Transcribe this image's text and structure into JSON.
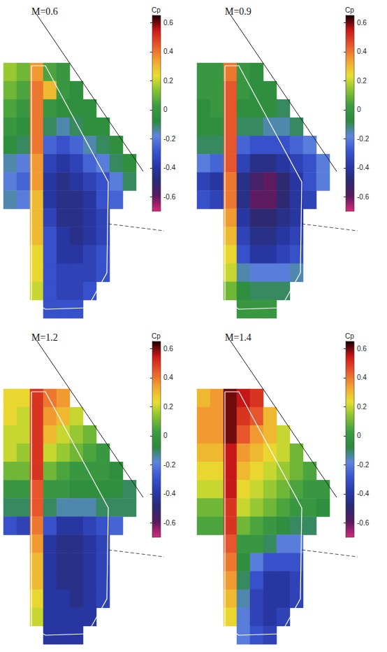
{
  "chart_data": [
    {
      "type": "heatmap",
      "title": "M=0.6",
      "colorbar_label": "Cp",
      "colorbar_range": [
        -0.7,
        0.65
      ],
      "colorbar_ticks": [
        -0.6,
        -0.4,
        -0.2,
        0,
        0.2,
        0.4,
        0.6
      ],
      "tick_labels": false,
      "values": [
        [
          0.15,
          0.1,
          0.35,
          0.05,
          0.0,
          null,
          null,
          null,
          null,
          null
        ],
        [
          0.1,
          0.05,
          0.4,
          0.3,
          0.0,
          -0.05,
          null,
          null,
          null,
          null
        ],
        [
          0.05,
          0.0,
          0.4,
          0.0,
          -0.05,
          -0.05,
          -0.05,
          null,
          null,
          null
        ],
        [
          0.0,
          -0.05,
          0.4,
          -0.1,
          -0.15,
          -0.1,
          -0.05,
          -0.05,
          null,
          null
        ],
        [
          -0.05,
          -0.1,
          0.4,
          -0.25,
          -0.3,
          -0.25,
          -0.15,
          -0.1,
          -0.05,
          null
        ],
        [
          -0.15,
          -0.2,
          0.35,
          -0.35,
          -0.4,
          -0.35,
          -0.25,
          -0.2,
          -0.1,
          -0.05
        ],
        [
          -0.2,
          -0.25,
          0.35,
          -0.4,
          -0.45,
          -0.4,
          -0.35,
          -0.3,
          -0.2,
          -0.1
        ],
        [
          -0.15,
          -0.2,
          0.3,
          -0.4,
          -0.45,
          -0.45,
          -0.4,
          -0.3,
          -0.25,
          null
        ],
        [
          null,
          null,
          0.3,
          -0.35,
          -0.45,
          -0.45,
          -0.4,
          -0.35,
          null,
          null
        ],
        [
          null,
          null,
          0.3,
          -0.3,
          -0.4,
          -0.45,
          -0.4,
          -0.35,
          null,
          null
        ],
        [
          null,
          null,
          0.25,
          -0.3,
          -0.4,
          -0.4,
          -0.35,
          -0.3,
          null,
          null
        ],
        [
          null,
          null,
          0.25,
          -0.3,
          -0.35,
          -0.35,
          -0.35,
          -0.3,
          null,
          null
        ],
        [
          null,
          null,
          0.2,
          -0.3,
          -0.35,
          -0.35,
          -0.3,
          null,
          null,
          null
        ],
        [
          null,
          null,
          null,
          -0.3,
          -0.3,
          -0.3,
          null,
          null,
          null,
          null
        ]
      ]
    },
    {
      "type": "heatmap",
      "title": "M=0.9",
      "colorbar_label": "Cp",
      "colorbar_range": [
        -0.7,
        0.65
      ],
      "colorbar_ticks": [
        -0.6,
        -0.4,
        -0.2,
        0,
        0.2,
        0.4,
        0.6
      ],
      "tick_labels": false,
      "values": [
        [
          0.0,
          0.0,
          0.4,
          0.0,
          -0.05,
          null,
          null,
          null,
          null,
          null
        ],
        [
          0.0,
          0.0,
          0.45,
          0.0,
          -0.05,
          -0.05,
          null,
          null,
          null,
          null
        ],
        [
          -0.05,
          0.0,
          0.45,
          -0.05,
          -0.05,
          -0.05,
          -0.1,
          null,
          null,
          null
        ],
        [
          -0.05,
          -0.05,
          0.45,
          -0.1,
          -0.1,
          -0.15,
          -0.15,
          -0.1,
          null,
          null
        ],
        [
          -0.1,
          -0.1,
          0.45,
          -0.25,
          -0.3,
          -0.3,
          -0.3,
          -0.25,
          -0.2,
          null
        ],
        [
          -0.2,
          -0.25,
          0.45,
          -0.35,
          -0.45,
          -0.45,
          -0.4,
          -0.35,
          -0.3,
          -0.2
        ],
        [
          -0.35,
          -0.4,
          0.4,
          -0.45,
          -0.55,
          -0.6,
          -0.5,
          -0.4,
          -0.3,
          -0.2
        ],
        [
          -0.3,
          -0.35,
          0.4,
          -0.45,
          -0.6,
          -0.6,
          -0.5,
          -0.4,
          -0.35,
          null
        ],
        [
          null,
          null,
          0.35,
          -0.4,
          -0.5,
          -0.5,
          -0.45,
          -0.4,
          null,
          null
        ],
        [
          null,
          null,
          0.3,
          -0.35,
          -0.45,
          -0.45,
          -0.4,
          -0.35,
          null,
          null
        ],
        [
          null,
          null,
          0.25,
          -0.3,
          -0.4,
          -0.4,
          -0.35,
          -0.3,
          null,
          null
        ],
        [
          null,
          null,
          0.2,
          -0.15,
          -0.2,
          -0.2,
          -0.2,
          -0.15,
          null,
          null
        ],
        [
          null,
          null,
          0.1,
          -0.05,
          -0.1,
          -0.1,
          -0.1,
          null,
          null,
          null
        ],
        [
          null,
          null,
          null,
          0.0,
          0.0,
          0.0,
          null,
          null,
          null,
          null
        ]
      ]
    },
    {
      "type": "heatmap",
      "title": "M=1.2",
      "colorbar_label": "Cp",
      "colorbar_range": [
        -0.7,
        0.65
      ],
      "colorbar_ticks": [
        -0.6,
        -0.4,
        -0.2,
        0,
        0.2,
        0.4,
        0.6
      ],
      "tick_labels": false,
      "values": [
        [
          0.25,
          0.25,
          0.5,
          0.4,
          0.35,
          null,
          null,
          null,
          null,
          null
        ],
        [
          0.25,
          0.2,
          0.5,
          0.35,
          0.3,
          0.2,
          null,
          null,
          null,
          null
        ],
        [
          0.2,
          0.2,
          0.5,
          0.3,
          0.2,
          0.15,
          0.1,
          null,
          null,
          null
        ],
        [
          0.2,
          0.15,
          0.5,
          0.2,
          0.15,
          0.1,
          0.05,
          0.0,
          null,
          null
        ],
        [
          0.1,
          0.1,
          0.5,
          0.1,
          0.05,
          0.0,
          0.0,
          0.0,
          -0.05,
          null
        ],
        [
          0.0,
          0.0,
          0.45,
          0.0,
          0.0,
          -0.05,
          -0.05,
          -0.05,
          -0.05,
          -0.1
        ],
        [
          -0.1,
          -0.1,
          0.45,
          -0.1,
          -0.15,
          -0.15,
          -0.15,
          -0.1,
          -0.1,
          -0.1
        ],
        [
          -0.3,
          -0.35,
          0.4,
          -0.3,
          -0.4,
          -0.4,
          -0.35,
          -0.3,
          -0.25,
          null
        ],
        [
          null,
          null,
          0.35,
          -0.4,
          -0.45,
          -0.45,
          -0.4,
          -0.35,
          null,
          null
        ],
        [
          null,
          null,
          0.3,
          -0.4,
          -0.45,
          -0.45,
          -0.4,
          -0.35,
          null,
          null
        ],
        [
          null,
          null,
          0.3,
          -0.4,
          -0.45,
          -0.45,
          -0.4,
          -0.35,
          null,
          null
        ],
        [
          null,
          null,
          0.25,
          -0.4,
          -0.4,
          -0.45,
          -0.4,
          -0.35,
          null,
          null
        ],
        [
          null,
          null,
          0.2,
          -0.4,
          -0.4,
          -0.4,
          -0.4,
          null,
          null,
          null
        ],
        [
          null,
          null,
          null,
          -0.4,
          -0.4,
          -0.4,
          null,
          null,
          null,
          null
        ]
      ]
    },
    {
      "type": "heatmap",
      "title": "M=1.4",
      "colorbar_label": "Cp",
      "colorbar_range": [
        -0.7,
        0.65
      ],
      "colorbar_ticks": [
        -0.6,
        -0.4,
        -0.2,
        0,
        0.2,
        0.4,
        0.6
      ],
      "tick_labels": false,
      "values": [
        [
          0.3,
          0.35,
          0.6,
          0.55,
          0.5,
          null,
          null,
          null,
          null,
          null
        ],
        [
          0.35,
          0.35,
          0.6,
          0.5,
          0.45,
          0.3,
          null,
          null,
          null,
          null
        ],
        [
          0.35,
          0.35,
          0.6,
          0.45,
          0.35,
          0.3,
          0.2,
          null,
          null,
          null
        ],
        [
          0.3,
          0.3,
          0.55,
          0.35,
          0.3,
          0.25,
          0.2,
          0.1,
          null,
          null
        ],
        [
          0.25,
          0.25,
          0.55,
          0.3,
          0.25,
          0.2,
          0.15,
          0.1,
          0.05,
          null
        ],
        [
          0.2,
          0.2,
          0.55,
          0.25,
          0.2,
          0.15,
          0.1,
          0.05,
          0.0,
          0.0
        ],
        [
          0.1,
          0.1,
          0.5,
          0.2,
          0.15,
          0.1,
          0.05,
          0.0,
          0.0,
          -0.05
        ],
        [
          0.05,
          0.05,
          0.5,
          0.1,
          0.05,
          0.0,
          -0.05,
          -0.1,
          -0.1,
          null
        ],
        [
          null,
          null,
          0.45,
          0.0,
          0.0,
          -0.1,
          -0.2,
          -0.2,
          null,
          null
        ],
        [
          null,
          null,
          0.4,
          -0.05,
          -0.2,
          -0.3,
          -0.3,
          -0.3,
          null,
          null
        ],
        [
          null,
          null,
          0.35,
          -0.1,
          -0.3,
          -0.4,
          -0.4,
          -0.35,
          null,
          null
        ],
        [
          null,
          null,
          0.3,
          -0.15,
          -0.35,
          -0.4,
          -0.4,
          -0.35,
          null,
          null
        ],
        [
          null,
          null,
          0.25,
          -0.2,
          -0.35,
          -0.4,
          -0.35,
          null,
          null,
          null
        ],
        [
          null,
          null,
          null,
          -0.2,
          -0.3,
          -0.35,
          null,
          null,
          null,
          null
        ]
      ]
    }
  ]
}
